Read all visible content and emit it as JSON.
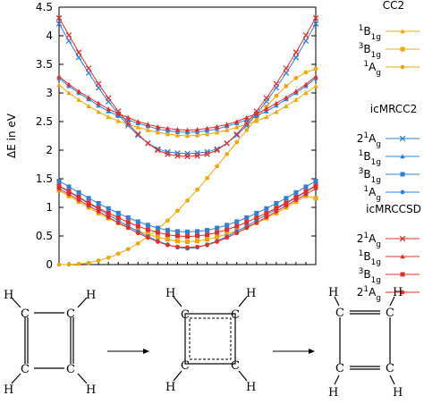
{
  "chart_data": {
    "type": "line",
    "xlabel": "",
    "ylabel": "ΔE in eV",
    "ylim": [
      0,
      4.5
    ],
    "yticks": [
      "0",
      "0.5",
      "1",
      "1.5",
      "2",
      "2.5",
      "3",
      "3.5",
      "4",
      "4.5"
    ],
    "x": [
      0,
      1,
      2,
      3,
      4,
      5,
      6,
      7,
      8,
      9,
      10,
      11,
      12,
      13,
      14,
      15,
      16,
      17,
      18,
      19,
      20,
      21,
      22,
      23,
      24,
      25,
      26
    ],
    "groups": [
      {
        "title": "CC2",
        "series": [
          {
            "label_main": "1",
            "label_sup": "B",
            "label_sub": "1g",
            "color": "#f0a800",
            "marker": "tri",
            "values": [
              3.14,
              3.0,
              2.88,
              2.77,
              2.67,
              2.58,
              2.51,
              2.45,
              2.4,
              2.35,
              2.31,
              2.28,
              2.26,
              2.25,
              2.26,
              2.28,
              2.31,
              2.35,
              2.4,
              2.45,
              2.51,
              2.58,
              2.67,
              2.77,
              2.88,
              3.0,
              3.12
            ]
          },
          {
            "label_main": "3",
            "label_sup": "B",
            "label_sub": "1g",
            "color": "#f0a800",
            "marker": "sq",
            "values": [
              1.3,
              1.2,
              1.1,
              1.0,
              0.9,
              0.81,
              0.73,
              0.66,
              0.59,
              0.53,
              0.48,
              0.44,
              0.41,
              0.4,
              0.41,
              0.44,
              0.48,
              0.53,
              0.59,
              0.66,
              0.73,
              0.81,
              0.9,
              1.0,
              1.1,
              1.2,
              1.16
            ]
          },
          {
            "label_main": "1",
            "label_sup": "A",
            "label_sub": "g",
            "color": "#f0a800",
            "marker": "circ",
            "values": [
              0.0,
              0.0,
              0.01,
              0.03,
              0.07,
              0.12,
              0.19,
              0.27,
              0.37,
              0.49,
              0.62,
              0.77,
              0.94,
              1.12,
              1.31,
              1.51,
              1.72,
              1.93,
              2.14,
              2.35,
              2.56,
              2.76,
              2.95,
              3.12,
              3.26,
              3.36,
              3.42
            ]
          }
        ]
      },
      {
        "title": "icMRCC2",
        "series": [
          {
            "label_main": "2",
            "label_sup": "1",
            "label_sub": "A",
            "label_sub2": "g",
            "color": "#2e7fd6",
            "marker": "x",
            "values": [
              4.21,
              3.91,
              3.62,
              3.35,
              3.09,
              2.85,
              2.63,
              2.43,
              2.26,
              2.12,
              2.02,
              1.97,
              1.95,
              1.94,
              1.95,
              1.97,
              2.02,
              2.12,
              2.26,
              2.43,
              2.63,
              2.85,
              3.09,
              3.35,
              3.62,
              3.91,
              4.21
            ]
          },
          {
            "label_main": "1",
            "label_sup": "B",
            "label_sub": "1g",
            "color": "#2e7fd6",
            "marker": "tri",
            "values": [
              3.26,
              3.12,
              3.0,
              2.89,
              2.78,
              2.68,
              2.6,
              2.53,
              2.47,
              2.42,
              2.37,
              2.34,
              2.32,
              2.31,
              2.32,
              2.34,
              2.37,
              2.42,
              2.47,
              2.53,
              2.6,
              2.68,
              2.78,
              2.89,
              3.0,
              3.12,
              3.26
            ]
          },
          {
            "label_main": "3",
            "label_sup": "B",
            "label_sub": "1g",
            "color": "#2e7fd6",
            "marker": "sq",
            "values": [
              1.46,
              1.36,
              1.26,
              1.16,
              1.07,
              0.98,
              0.9,
              0.82,
              0.75,
              0.69,
              0.64,
              0.6,
              0.58,
              0.57,
              0.58,
              0.6,
              0.64,
              0.69,
              0.75,
              0.82,
              0.9,
              0.98,
              1.07,
              1.16,
              1.26,
              1.36,
              1.46
            ]
          },
          {
            "label_main": "1",
            "label_sup": "A",
            "label_sub": "g",
            "color": "#2e7fd6",
            "marker": "circ",
            "values": [
              1.37,
              1.27,
              1.17,
              1.07,
              0.97,
              0.87,
              0.77,
              0.67,
              0.58,
              0.49,
              0.41,
              0.35,
              0.3,
              0.28,
              0.3,
              0.35,
              0.41,
              0.49,
              0.58,
              0.67,
              0.77,
              0.87,
              0.97,
              1.07,
              1.17,
              1.27,
              1.37
            ]
          }
        ]
      },
      {
        "title": "icMRCCSD",
        "series": [
          {
            "label_main": "2",
            "label_sup": "1",
            "label_sub": "A",
            "label_sub2": "g",
            "color": "#e02d2d",
            "marker": "x",
            "values": [
              4.31,
              4.01,
              3.71,
              3.43,
              3.16,
              2.91,
              2.68,
              2.47,
              2.28,
              2.12,
              2.0,
              1.93,
              1.9,
              1.89,
              1.9,
              1.93,
              2.0,
              2.12,
              2.28,
              2.47,
              2.68,
              2.91,
              3.16,
              3.43,
              3.71,
              4.01,
              4.31
            ]
          },
          {
            "label_main": "1",
            "label_sup": "B",
            "label_sub": "1g",
            "color": "#e02d2d",
            "marker": "tri",
            "values": [
              3.29,
              3.15,
              3.03,
              2.92,
              2.82,
              2.72,
              2.64,
              2.57,
              2.5,
              2.45,
              2.41,
              2.38,
              2.36,
              2.35,
              2.36,
              2.38,
              2.41,
              2.45,
              2.5,
              2.57,
              2.64,
              2.72,
              2.82,
              2.92,
              3.03,
              3.15,
              3.29
            ]
          },
          {
            "label_main": "3",
            "label_sup": "B",
            "label_sub": "1g",
            "color": "#e02d2d",
            "marker": "sq",
            "values": [
              1.38,
              1.28,
              1.18,
              1.08,
              0.99,
              0.9,
              0.82,
              0.74,
              0.67,
              0.61,
              0.56,
              0.52,
              0.5,
              0.49,
              0.5,
              0.52,
              0.56,
              0.61,
              0.67,
              0.74,
              0.82,
              0.9,
              0.99,
              1.08,
              1.18,
              1.28,
              1.38
            ]
          },
          {
            "label_main": "2",
            "label_sup": "1",
            "label_sub": "A",
            "label_sub2": "g",
            "color": "#e02d2d",
            "marker": "circ",
            "values": [
              1.33,
              1.23,
              1.13,
              1.03,
              0.93,
              0.83,
              0.73,
              0.64,
              0.55,
              0.47,
              0.4,
              0.34,
              0.31,
              0.3,
              0.31,
              0.34,
              0.4,
              0.47,
              0.55,
              0.64,
              0.73,
              0.83,
              0.93,
              1.03,
              1.13,
              1.23,
              1.33
            ]
          }
        ]
      }
    ]
  },
  "molecules": [
    {
      "atoms": [
        "H",
        "H",
        "H",
        "H",
        "C",
        "C",
        "C",
        "C"
      ]
    },
    {
      "atoms": [
        "H",
        "H",
        "H",
        "H",
        "C",
        "C",
        "C",
        "C"
      ]
    },
    {
      "atoms": [
        "H",
        "H",
        "H",
        "H",
        "C",
        "C",
        "C",
        "C"
      ]
    }
  ]
}
